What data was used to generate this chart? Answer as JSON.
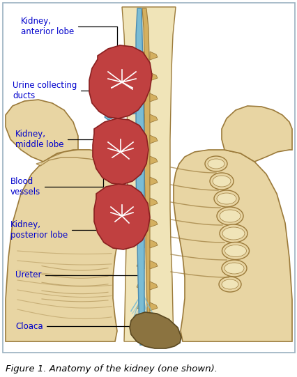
{
  "title": "Figure 1. Anatomy of the kidney (one shown).",
  "labels": {
    "kidney_anterior": "Kidney,\nanterior lobe",
    "urine_collecting": "Urine collecting\nducts",
    "kidney_middle": "Kidney,\nmiddle lobe",
    "blood_vessels": "Blood\nvessels",
    "kidney_posterior": "Kidney,\nposterior lobe",
    "ureter": "Ureter",
    "cloaca": "Cloaca"
  },
  "colors": {
    "background": "#ffffff",
    "border": "#9ab0c0",
    "bone": "#e8d5a3",
    "bone_light": "#f0e4b8",
    "bone_edge": "#9b7a3a",
    "bone_shadow": "#c8a868",
    "kidney": "#c04040",
    "kidney_dark": "#8a2020",
    "kidney_vessel": "#ffffff",
    "blue_vessel": "#7abcd4",
    "blue_dark": "#4a8ab0",
    "label_color": "#0000cc",
    "arrow_color": "#000000",
    "cloaca_fill": "#8b7340",
    "cloaca_edge": "#5a4820",
    "spine_fill": "#d4b060",
    "nerve_color": "#7abcd4"
  },
  "figure_size": [
    4.27,
    5.41
  ],
  "dpi": 100
}
